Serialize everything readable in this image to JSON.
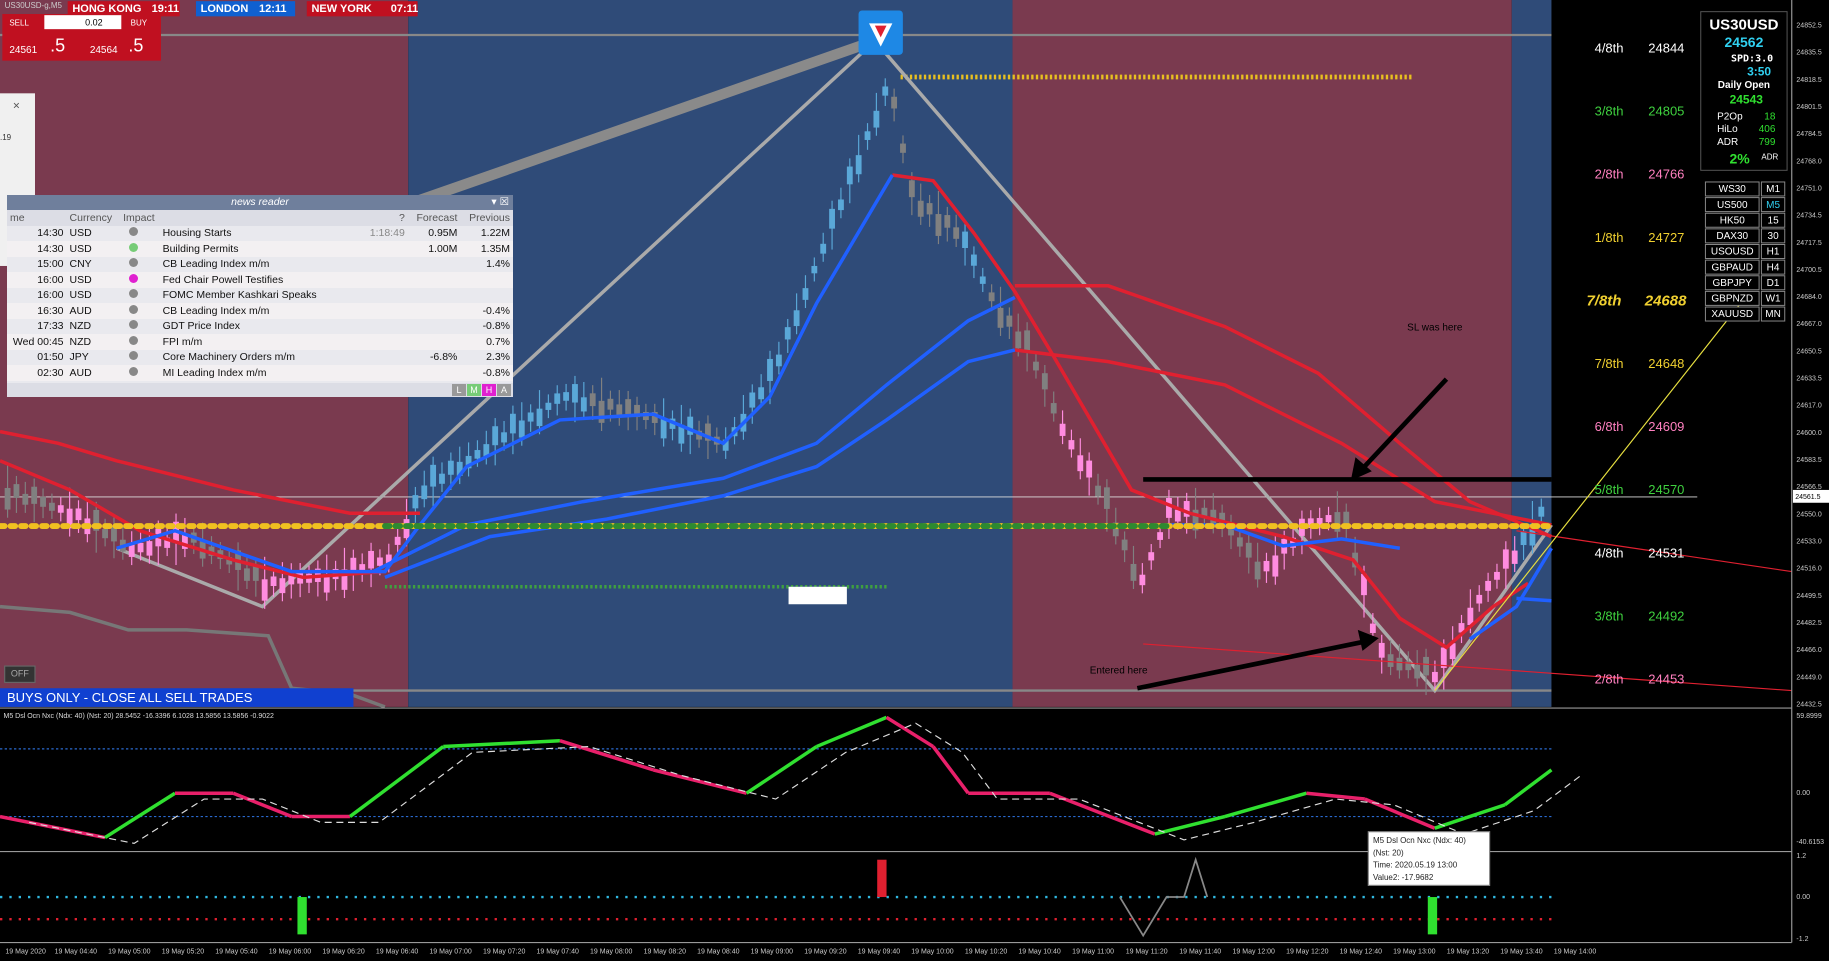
{
  "window": {
    "symbol": "US30USD-g,M5"
  },
  "sessions": [
    {
      "city": "HONG KONG",
      "time": "19:11"
    },
    {
      "city": "LONDON",
      "time": "12:11"
    },
    {
      "city": "NEW YORK",
      "time": "07:11"
    }
  ],
  "trade_panel": {
    "sell": "SELL",
    "lots": "0.02",
    "buy": "BUY",
    "bid": "24561",
    "bid_frac": ".5",
    "ask": "24564",
    "ask_frac": ".5"
  },
  "left_panel": {
    "close": "×",
    "text": ".19"
  },
  "news_reader": {
    "title": "news reader",
    "columns": [
      "me",
      "Currency",
      "Impact",
      "?",
      "Forecast",
      "Previous"
    ],
    "rows": [
      {
        "time": "14:30",
        "currency": "USD",
        "event": "Housing Starts",
        "timer": "1:18:49",
        "forecast": "0.95M",
        "previous": "1.22M"
      },
      {
        "time": "14:30",
        "currency": "USD",
        "event": "Building Permits",
        "forecast": "1.00M",
        "previous": "1.35M"
      },
      {
        "time": "15:00",
        "currency": "CNY",
        "event": "CB Leading Index m/m",
        "previous": "1.4%"
      },
      {
        "time": "16:00",
        "currency": "USD",
        "event": "Fed Chair Powell Testifies"
      },
      {
        "time": "16:00",
        "currency": "USD",
        "event": "FOMC Member Kashkari Speaks"
      },
      {
        "time": "16:30",
        "currency": "AUD",
        "event": "CB Leading Index m/m",
        "previous": "-0.4%"
      },
      {
        "time": "17:33",
        "currency": "NZD",
        "event": "GDT Price Index",
        "previous": "-0.8%"
      },
      {
        "time": "Wed 00:45",
        "currency": "NZD",
        "event": "FPI m/m",
        "previous": "0.7%"
      },
      {
        "time": "01:50",
        "currency": "JPY",
        "event": "Core Machinery Orders m/m",
        "forecast": "-6.8%",
        "previous": "2.3%"
      },
      {
        "time": "02:30",
        "currency": "AUD",
        "event": "MI Leading Index m/m",
        "previous": "-0.8%"
      }
    ],
    "buttons": [
      "L",
      "M",
      "H",
      "A"
    ]
  },
  "murrey_levels": [
    {
      "label": "4/8th",
      "price": 24844
    },
    {
      "label": "3/8th",
      "price": 24805
    },
    {
      "label": "2/8th",
      "price": 24766
    },
    {
      "label": "1/8th",
      "price": 24727
    },
    {
      "label": "7/8th",
      "price": 24688
    },
    {
      "label": "7/8th",
      "price": 24648
    },
    {
      "label": "6/8th",
      "price": 24609
    },
    {
      "label": "5/8th",
      "price": 24570
    },
    {
      "label": "4/8th",
      "price": 24531
    },
    {
      "label": "3/8th",
      "price": 24492
    },
    {
      "label": "2/8th",
      "price": 24453
    }
  ],
  "info_panel": {
    "symbol": "US30USD",
    "price": 24562,
    "spread": "SPD:3.0",
    "timer": "3:50",
    "daily_open_label": "Daily Open",
    "daily_open": 24543,
    "stats": [
      {
        "label": "P2Op",
        "value": 18
      },
      {
        "label": "HiLo",
        "value": 406
      },
      {
        "label": "ADR",
        "value": 799
      }
    ],
    "adr_pct": "2%",
    "adr_label": "ADR"
  },
  "symbols": [
    {
      "name": "WS30",
      "tf": "M1"
    },
    {
      "name": "US500",
      "tf": "M5"
    },
    {
      "name": "HK50",
      "tf": "15"
    },
    {
      "name": "DAX30",
      "tf": "30"
    },
    {
      "name": "USOUSD",
      "tf": "H1"
    },
    {
      "name": "GBPAUD",
      "tf": "H4"
    },
    {
      "name": "GBPJPY",
      "tf": "D1"
    },
    {
      "name": "GBPNZD",
      "tf": "W1"
    },
    {
      "name": "XAUUSD",
      "tf": "MN"
    }
  ],
  "price_axis": [
    "24852.5",
    "24835.5",
    "24818.5",
    "24801.5",
    "24784.5",
    "24768.0",
    "24751.0",
    "24734.5",
    "24717.5",
    "24700.5",
    "24684.0",
    "24667.0",
    "24650.5",
    "24633.5",
    "24617.0",
    "24600.0",
    "24583.5",
    "24566.5",
    "24550.0",
    "24533.0",
    "24516.0",
    "24499.5",
    "24482.5",
    "24466.0",
    "24449.0",
    "24432.5"
  ],
  "current_price": "24561.5",
  "annotations": {
    "sl": "SL was here",
    "entry": "Entered here",
    "banner": "BUYS ONLY - CLOSE ALL SELL TRADES",
    "off": "OFF"
  },
  "indicator": {
    "label": "M5 Dsl Ocn Nxc (Ndx: 40) (Nst: 20) 28.5452 -16.3396 6.1028 13.5856 13.5856 -0.9022",
    "axis": [
      "59.8999",
      "0.00",
      "-40.6153"
    ]
  },
  "signal_axis": [
    "1.2",
    "0.00",
    "-1.2"
  ],
  "tooltip": [
    "M5 Dsl Ocn Nxc (Ndx: 40)",
    "(Nst: 20)",
    "Time: 2020.05.19 13:00",
    "Value2: -17.9682"
  ],
  "time_axis": [
    "19 May 2020",
    "19 May 04:40",
    "19 May 05:00",
    "19 May 05:20",
    "19 May 05:40",
    "19 May 06:00",
    "19 May 06:20",
    "19 May 06:40",
    "19 May 07:00",
    "19 May 07:20",
    "19 May 07:40",
    "19 May 08:00",
    "19 May 08:20",
    "19 May 08:40",
    "19 May 09:00",
    "19 May 09:20",
    "19 May 09:40",
    "19 May 10:00",
    "19 May 10:20",
    "19 May 10:40",
    "19 May 11:00",
    "19 May 11:20",
    "19 May 11:40",
    "19 May 12:00",
    "19 May 12:20",
    "19 May 12:40",
    "19 May 13:00",
    "19 May 13:20",
    "19 May 13:40",
    "19 May 14:00"
  ]
}
